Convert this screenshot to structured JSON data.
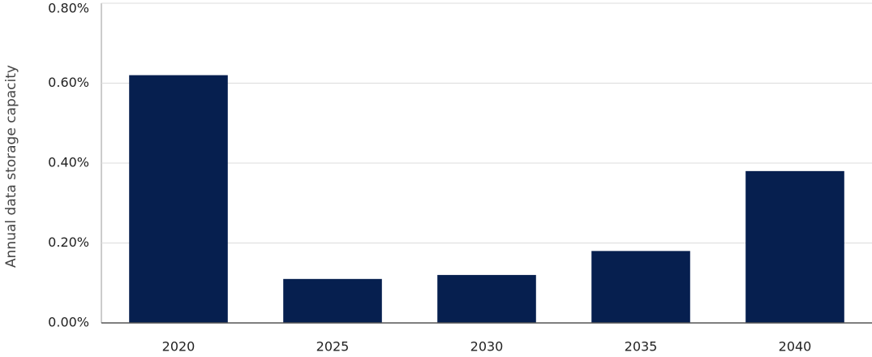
{
  "chart_data": {
    "type": "bar",
    "y_label": "Annual data storage capacity",
    "categories": [
      "2020",
      "2025",
      "2030",
      "2035",
      "2040"
    ],
    "values": [
      0.62,
      0.11,
      0.12,
      0.18,
      0.38
    ],
    "color": "#061f4f",
    "ylim": [
      0,
      0.8
    ],
    "yticks": [
      {
        "value": 0,
        "label": "0.00%"
      },
      {
        "value": 0.2,
        "label": "0.20%"
      },
      {
        "value": 0.4,
        "label": "0.40%"
      },
      {
        "value": 0.6,
        "label": "0.60%"
      },
      {
        "value": 0.8,
        "label": "0.80%"
      }
    ],
    "grid": true
  }
}
